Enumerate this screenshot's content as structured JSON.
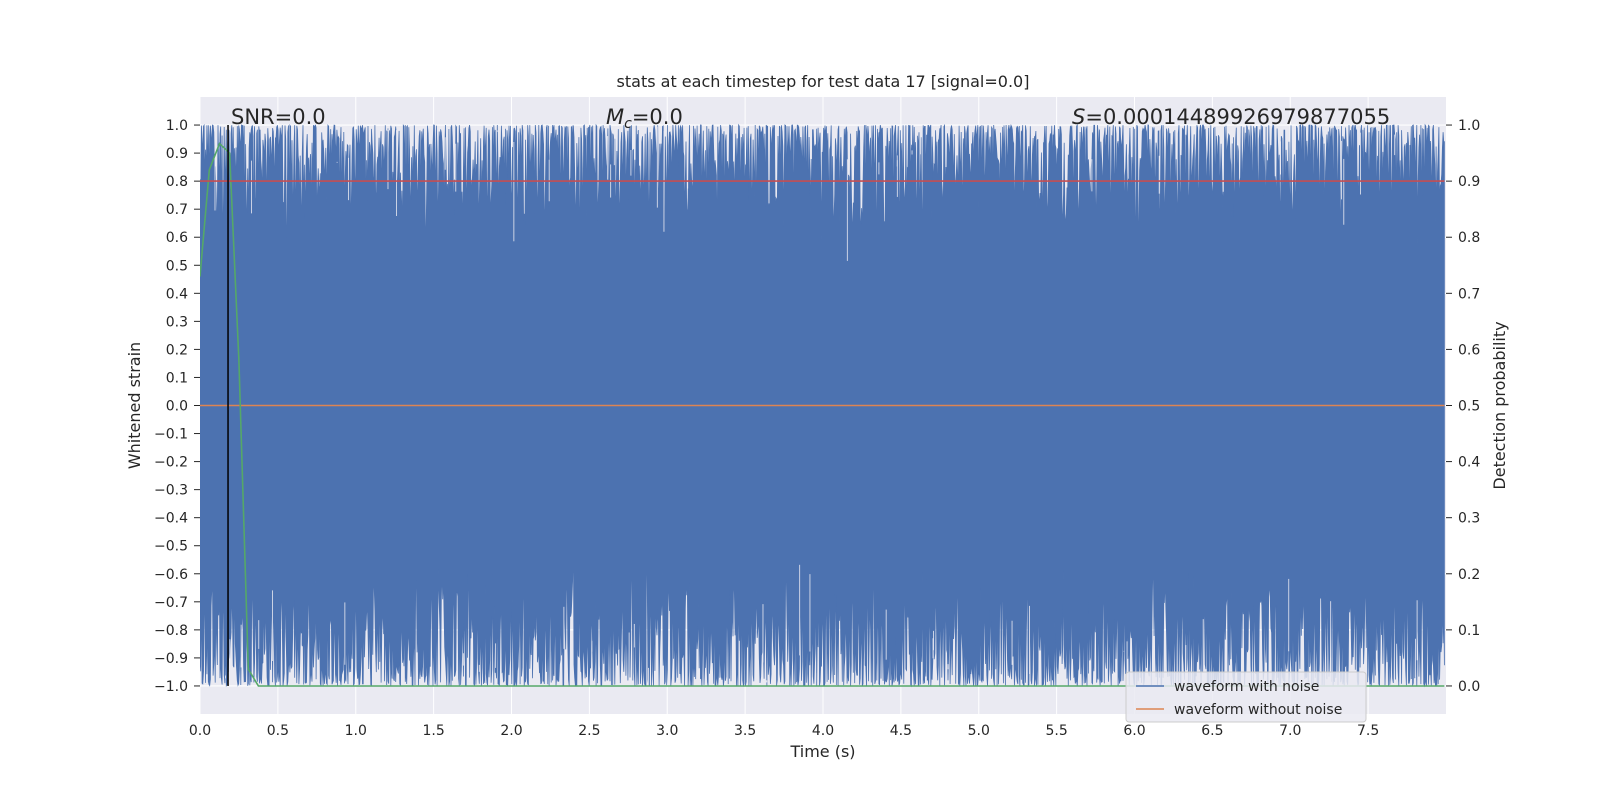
{
  "chart_data": {
    "type": "line",
    "title": "stats at each timestep for test data 17 [signal=0.0]",
    "xlabel": "Time (s)",
    "ylabel": "Whitened strain",
    "y2label": "Detection probability",
    "xlim": [
      0.0,
      8.0
    ],
    "ylim": [
      -1.1,
      1.1
    ],
    "y2lim": [
      -0.05,
      1.05
    ],
    "xticks": [
      "0.0",
      "0.5",
      "1.0",
      "1.5",
      "2.0",
      "2.5",
      "3.0",
      "3.5",
      "4.0",
      "4.5",
      "5.0",
      "5.5",
      "6.0",
      "6.5",
      "7.0",
      "7.5"
    ],
    "yticks": [
      "−1.0",
      "−0.9",
      "−0.8",
      "−0.7",
      "−0.6",
      "−0.5",
      "−0.4",
      "−0.3",
      "−0.2",
      "−0.1",
      "0.0",
      "0.1",
      "0.2",
      "0.3",
      "0.4",
      "0.5",
      "0.6",
      "0.7",
      "0.8",
      "0.9",
      "1.0"
    ],
    "y2ticks": [
      "0.0",
      "0.1",
      "0.2",
      "0.3",
      "0.4",
      "0.5",
      "0.6",
      "0.7",
      "0.8",
      "0.9",
      "1.0"
    ],
    "grid": true,
    "legend_position": "lower right",
    "annotations": {
      "snr": {
        "label": "SNR=0.0"
      },
      "mc": {
        "symbol": "M",
        "sub": "c",
        "value": "=0.0"
      },
      "s": {
        "symbol": "S",
        "value": "=0.00014489926979877055"
      }
    },
    "vline_x": 0.18,
    "series": [
      {
        "name": "waveform with noise",
        "axis": "left",
        "color": "#4c72b0",
        "description_values": {
          "y_min": -1.0,
          "y_max": 1.0,
          "t_end": 7.99
        }
      },
      {
        "name": "waveform without noise",
        "axis": "left",
        "color": "#dd8452",
        "x": [
          0.0,
          7.99
        ],
        "y": [
          0.0,
          0.0
        ]
      },
      {
        "axis": "right",
        "color": "#55a868",
        "x": [
          0.0,
          0.06,
          0.125,
          0.19,
          0.25,
          0.31,
          0.375,
          0.44,
          7.99
        ],
        "y": [
          0.73,
          0.92,
          0.967,
          0.95,
          0.58,
          0.03,
          0.0,
          0.0,
          0.0
        ]
      },
      {
        "axis": "right",
        "color": "#c44e52",
        "x": [
          0.0,
          7.99
        ],
        "y": [
          0.9,
          0.9
        ]
      }
    ]
  }
}
